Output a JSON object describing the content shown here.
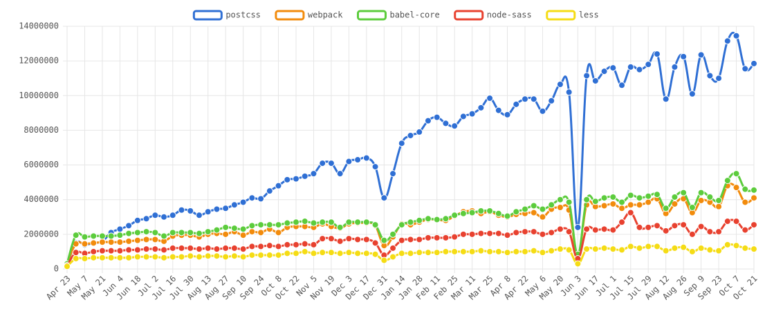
{
  "chart_data": {
    "type": "line",
    "categories": [
      "Apr 23",
      null,
      "May 7",
      null,
      "May 21",
      null,
      "Jun 4",
      null,
      "Jun 18",
      null,
      "Jul 2",
      null,
      "Jul 16",
      null,
      "Jul 30",
      null,
      "Aug 13",
      null,
      "Aug 27",
      null,
      "Sep 10",
      null,
      "Sep 24",
      null,
      "Oct 8",
      null,
      "Oct 22",
      null,
      "Nov 5",
      null,
      "Nov 19",
      null,
      "Dec 3",
      null,
      "Dec 17",
      null,
      "Dec 31",
      null,
      "Jan 14",
      null,
      "Jan 28",
      null,
      "Feb 11",
      null,
      "Feb 25",
      null,
      "Mar 11",
      null,
      "Mar 25",
      null,
      "Apr 8",
      null,
      "Apr 22",
      null,
      "May 6",
      null,
      "May 20",
      null,
      "Jun 3",
      null,
      "Jun 17",
      null,
      "Jul 1",
      null,
      "Jul 15",
      null,
      "Jul 29",
      null,
      "Aug 12",
      null,
      "Aug 26",
      null,
      "Sep 9",
      null,
      "Sep 23",
      null,
      "Oct 7",
      null,
      "Oct 21"
    ],
    "ylim": [
      0,
      14000000
    ],
    "yticks": [
      0,
      2000000,
      4000000,
      6000000,
      8000000,
      10000000,
      12000000,
      14000000
    ],
    "grid": true,
    "legend": "top",
    "series": [
      {
        "name": "postcss",
        "color": "#2f6fd4",
        "values": [
          200000,
          1500000,
          1400000,
          1500000,
          1600000,
          2100000,
          2300000,
          2500000,
          2800000,
          2900000,
          3100000,
          3000000,
          3100000,
          3400000,
          3350000,
          3100000,
          3300000,
          3450000,
          3500000,
          3700000,
          3850000,
          4100000,
          4050000,
          4500000,
          4800000,
          5150000,
          5200000,
          5350000,
          5500000,
          6100000,
          6100000,
          5500000,
          6200000,
          6300000,
          6400000,
          5900000,
          4100000,
          5500000,
          7250000,
          7700000,
          7900000,
          8550000,
          8750000,
          8400000,
          8250000,
          8800000,
          8950000,
          9300000,
          9850000,
          9150000,
          8900000,
          9500000,
          9800000,
          9800000,
          9100000,
          9700000,
          10650000,
          10200000,
          2400000,
          11150000,
          10850000,
          11400000,
          11600000,
          10600000,
          11650000,
          11500000,
          11800000,
          12400000,
          9800000,
          11650000,
          12250000,
          10100000,
          12350000,
          11150000,
          11000000,
          13150000,
          13450000,
          11550000,
          11850000
        ]
      },
      {
        "name": "webpack",
        "color": "#f28b0c",
        "values": [
          300000,
          1450000,
          1450000,
          1500000,
          1550000,
          1550000,
          1550000,
          1600000,
          1650000,
          1700000,
          1700000,
          1600000,
          1900000,
          1950000,
          1950000,
          1850000,
          2000000,
          2050000,
          2000000,
          2150000,
          1950000,
          2150000,
          2100000,
          2300000,
          2100000,
          2400000,
          2450000,
          2450000,
          2400000,
          2600000,
          2450000,
          2350000,
          2600000,
          2650000,
          2650000,
          2500000,
          1350000,
          1850000,
          2600000,
          2550000,
          2700000,
          2850000,
          2850000,
          2800000,
          3050000,
          3300000,
          3350000,
          3200000,
          3300000,
          3100000,
          3000000,
          3150000,
          3200000,
          3250000,
          3000000,
          3450000,
          3550000,
          3400000,
          800000,
          3700000,
          3600000,
          3650000,
          3750000,
          3500000,
          3700000,
          3700000,
          3850000,
          4050000,
          3200000,
          3750000,
          4050000,
          3250000,
          3950000,
          3850000,
          3600000,
          4800000,
          4700000,
          3850000,
          4100000
        ]
      },
      {
        "name": "babel-core",
        "color": "#5ccc3c",
        "values": [
          300000,
          1950000,
          1850000,
          1900000,
          1900000,
          1900000,
          1950000,
          2050000,
          2100000,
          2150000,
          2100000,
          1900000,
          2100000,
          2100000,
          2100000,
          2050000,
          2150000,
          2250000,
          2400000,
          2350000,
          2300000,
          2500000,
          2550000,
          2550000,
          2550000,
          2650000,
          2700000,
          2750000,
          2650000,
          2700000,
          2700000,
          2400000,
          2700000,
          2700000,
          2700000,
          2550000,
          1650000,
          2000000,
          2550000,
          2700000,
          2800000,
          2900000,
          2850000,
          2900000,
          3100000,
          3200000,
          3250000,
          3350000,
          3350000,
          3200000,
          3050000,
          3300000,
          3450000,
          3650000,
          3450000,
          3700000,
          4000000,
          3850000,
          850000,
          4000000,
          3900000,
          4100000,
          4150000,
          3850000,
          4250000,
          4100000,
          4200000,
          4300000,
          3500000,
          4150000,
          4400000,
          3550000,
          4400000,
          4150000,
          3950000,
          5100000,
          5500000,
          4600000,
          4550000
        ]
      },
      {
        "name": "node-sass",
        "color": "#e8412f",
        "values": [
          200000,
          950000,
          900000,
          1000000,
          1050000,
          1050000,
          1050000,
          1100000,
          1100000,
          1150000,
          1150000,
          1100000,
          1200000,
          1200000,
          1200000,
          1150000,
          1200000,
          1150000,
          1200000,
          1200000,
          1150000,
          1300000,
          1300000,
          1350000,
          1300000,
          1400000,
          1400000,
          1450000,
          1400000,
          1750000,
          1750000,
          1600000,
          1750000,
          1700000,
          1700000,
          1500000,
          800000,
          1200000,
          1650000,
          1700000,
          1700000,
          1800000,
          1800000,
          1800000,
          1850000,
          2000000,
          2000000,
          2050000,
          2050000,
          2050000,
          1950000,
          2100000,
          2150000,
          2150000,
          2000000,
          2100000,
          2300000,
          2150000,
          600000,
          2300000,
          2250000,
          2300000,
          2250000,
          2700000,
          3250000,
          2400000,
          2400000,
          2500000,
          2200000,
          2500000,
          2550000,
          2000000,
          2450000,
          2150000,
          2150000,
          2750000,
          2750000,
          2250000,
          2550000
        ]
      },
      {
        "name": "less",
        "color": "#f5dc14",
        "values": [
          150000,
          600000,
          600000,
          650000,
          650000,
          650000,
          650000,
          650000,
          700000,
          700000,
          700000,
          650000,
          700000,
          700000,
          750000,
          700000,
          750000,
          750000,
          700000,
          750000,
          700000,
          800000,
          800000,
          800000,
          800000,
          900000,
          900000,
          1000000,
          900000,
          950000,
          950000,
          900000,
          950000,
          900000,
          900000,
          850000,
          500000,
          700000,
          900000,
          900000,
          950000,
          950000,
          950000,
          1000000,
          1000000,
          1000000,
          1000000,
          1050000,
          1000000,
          1000000,
          950000,
          1000000,
          1000000,
          1050000,
          950000,
          1050000,
          1150000,
          1100000,
          300000,
          1150000,
          1150000,
          1200000,
          1150000,
          1100000,
          1300000,
          1200000,
          1300000,
          1300000,
          1050000,
          1200000,
          1250000,
          1000000,
          1200000,
          1100000,
          1050000,
          1400000,
          1350000,
          1200000,
          1150000
        ]
      }
    ]
  }
}
